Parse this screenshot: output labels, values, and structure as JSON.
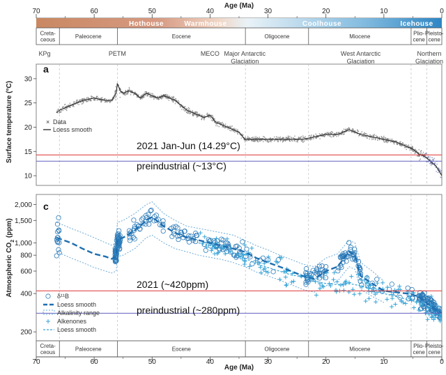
{
  "chart_data": [
    {
      "panel": "a",
      "type": "scatter",
      "ylabel": "Surface temperature (°C)",
      "xlabel": "Age (Ma)",
      "x_reversed": true,
      "xlim": [
        70,
        0
      ],
      "ylim": [
        8,
        33
      ],
      "y_ticks": [
        10,
        15,
        20,
        25,
        30
      ],
      "legend": [
        "Data",
        "Loess smooth"
      ],
      "legend_position": "left",
      "event_labels": [
        {
          "label": "KPg",
          "x": 66
        },
        {
          "label": "PETM",
          "x": 56
        },
        {
          "label": "MECO",
          "x": 40
        },
        {
          "label": "Major Antarctic Glaciation",
          "x": 34
        },
        {
          "label": "West Antarctic Glaciation",
          "x": 14
        },
        {
          "label": "Northern Glaciation",
          "x": 2.6
        }
      ],
      "reference_lines": [
        {
          "label": "2021 Jan-Jun (14.29°C)",
          "value": 14.29,
          "color": "#e03030"
        },
        {
          "label": "preindustrial (~13°C)",
          "value": 13,
          "color": "#6060c0"
        }
      ],
      "loess_smooth": {
        "x": [
          66.5,
          66,
          64,
          62,
          60,
          58,
          57,
          56.2,
          56,
          55.5,
          55,
          54,
          53,
          52,
          51,
          50,
          49,
          48,
          47,
          46,
          45,
          44,
          43,
          42,
          41,
          40,
          39,
          38,
          37,
          36,
          35,
          34,
          33,
          32,
          30,
          28,
          26,
          24,
          22,
          20,
          18,
          17,
          16,
          15,
          14,
          12,
          10,
          8,
          6,
          5,
          4,
          3,
          2,
          1,
          0.5,
          0
        ],
        "y": [
          23,
          23.5,
          24.5,
          25.5,
          26,
          25.5,
          25.5,
          27,
          29,
          27.5,
          27,
          27.5,
          27,
          26,
          27,
          26.5,
          26,
          26.5,
          26,
          25.5,
          24.5,
          23.5,
          23,
          22.5,
          22,
          22.5,
          21,
          20.5,
          20,
          19.5,
          19,
          17.5,
          17.5,
          17.5,
          17.5,
          17.5,
          17.5,
          17.5,
          18,
          18.5,
          18.5,
          19,
          19.5,
          19,
          18.5,
          18,
          17.5,
          17,
          16,
          15.5,
          14.5,
          14,
          13,
          12,
          11,
          10
        ]
      }
    },
    {
      "panel": "c",
      "type": "scatter",
      "ylabel": "Atmospheric CO2 (ppm)",
      "xlabel": "Age (Ma)",
      "x_reversed": true,
      "xlim": [
        70,
        0
      ],
      "y_scale": "log",
      "ylim": [
        170,
        2400
      ],
      "y_ticks": [
        200,
        400,
        600,
        800,
        1000,
        1500,
        2000
      ],
      "y_tick_labels": [
        "200",
        "400",
        "600",
        "800",
        "1,000",
        "1,500",
        "2,000"
      ],
      "legend": [
        "δ11B",
        "Loess smooth",
        "Alkalinity range",
        "Alkenones",
        "Loess smooth"
      ],
      "legend_position": "bottom-left",
      "reference_lines": [
        {
          "label": "2021 (~420ppm)",
          "value": 420,
          "color": "#e03030"
        },
        {
          "label": "preindustrial (~280ppm)",
          "value": 280,
          "color": "#6060c0"
        }
      ],
      "boron_loess": {
        "x": [
          66.5,
          64,
          62,
          60,
          58,
          57,
          56.2,
          56,
          55,
          53,
          51,
          50,
          48,
          46,
          44,
          42,
          40,
          38,
          36,
          34,
          32,
          30,
          28,
          26,
          24,
          22,
          20,
          18,
          16,
          15,
          14,
          12,
          10,
          8,
          6,
          4,
          2,
          1,
          0
        ],
        "y": [
          1100,
          1000,
          900,
          820,
          780,
          750,
          780,
          1050,
          1100,
          1250,
          1500,
          1600,
          1350,
          1200,
          1100,
          1050,
          1000,
          950,
          900,
          850,
          760,
          700,
          650,
          600,
          550,
          520,
          600,
          650,
          850,
          800,
          550,
          480,
          420,
          410,
          400,
          380,
          320,
          300,
          280
        ]
      },
      "alkalinity_upper": {
        "x": [
          66.5,
          64,
          62,
          60,
          58,
          57,
          56.2,
          56,
          55,
          53,
          51,
          50,
          48,
          46,
          44,
          42,
          40,
          38,
          36,
          34,
          32,
          30,
          28,
          26,
          24,
          22,
          20,
          18,
          16,
          15,
          14,
          12,
          10
        ],
        "y": [
          1450,
          1300,
          1200,
          1100,
          1000,
          960,
          1000,
          1450,
          1500,
          1700,
          2000,
          2100,
          1700,
          1500,
          1350,
          1300,
          1250,
          1200,
          1150,
          1050,
          950,
          880,
          800,
          740,
          680,
          650,
          760,
          820,
          1050,
          1000,
          700,
          600,
          500
        ]
      },
      "alkalinity_lower": {
        "x": [
          66.5,
          64,
          62,
          60,
          58,
          57,
          56.2,
          56,
          55,
          53,
          51,
          50,
          48,
          46,
          44,
          42,
          40,
          38,
          36,
          34,
          32,
          30,
          28,
          26,
          24,
          22,
          20,
          18,
          16,
          15,
          14,
          12,
          10
        ],
        "y": [
          850,
          760,
          700,
          640,
          600,
          580,
          600,
          780,
          800,
          900,
          1100,
          1150,
          1000,
          900,
          850,
          800,
          770,
          740,
          700,
          650,
          590,
          550,
          510,
          470,
          430,
          410,
          460,
          500,
          650,
          620,
          430,
          380,
          340
        ]
      },
      "alkenone_loess": {
        "x": [
          42,
          40,
          38,
          36,
          34,
          32,
          30,
          28,
          26,
          24,
          22,
          20,
          18,
          16,
          14,
          12,
          10,
          8,
          6,
          4,
          2,
          1,
          0
        ],
        "y": [
          1000,
          950,
          900,
          820,
          760,
          680,
          640,
          600,
          560,
          540,
          500,
          480,
          470,
          480,
          460,
          430,
          400,
          380,
          360,
          340,
          300,
          280,
          260
        ]
      }
    }
  ],
  "labels": {
    "age_axis_title": "Age (Ma)",
    "x_ticks": [
      "70",
      "60",
      "50",
      "40",
      "30",
      "20",
      "10",
      "0"
    ],
    "climate_states": [
      "Hothouse",
      "Warmhouse",
      "Coolhouse",
      "Icehouse"
    ],
    "epochs": [
      {
        "lines": [
          "Creta-",
          "ceous"
        ],
        "from": 70,
        "to": 66
      },
      {
        "lines": [
          "Paleocene"
        ],
        "from": 66,
        "to": 56
      },
      {
        "lines": [
          "Eocene"
        ],
        "from": 56,
        "to": 33.9
      },
      {
        "lines": [
          "Oligocene"
        ],
        "from": 33.9,
        "to": 23
      },
      {
        "lines": [
          "Miocene"
        ],
        "from": 23,
        "to": 5.3
      },
      {
        "lines": [
          "Plio-",
          "cene"
        ],
        "from": 5.3,
        "to": 2.6
      },
      {
        "lines": [
          "Pleisto-",
          "cene"
        ],
        "from": 2.6,
        "to": 0
      }
    ],
    "panel_a_letter": "a",
    "panel_c_letter": "c",
    "temp_axis_title": "Surface temperature (°C)",
    "co2_axis_title_main": "Atmospheric CO",
    "co2_axis_title_sub": "2",
    "co2_axis_title_unit": " (ppm)",
    "legend_a": [
      "Data",
      "Loess smooth"
    ],
    "legend_c": [
      "δ¹¹B",
      "Loess smooth",
      "Alkalinity range",
      "Alkenones",
      "Loess smooth"
    ],
    "ref_a_2021": "2021 Jan-Jun (14.29°C)",
    "ref_a_pre": "preindustrial (~13°C)",
    "ref_c_2021": "2021 (~420ppm)",
    "ref_c_pre": "preindustrial (~280ppm)"
  },
  "colors": {
    "hothouse": "#c98862",
    "warmhouse": "#e8c7b2",
    "coolhouse": "#a9cfe6",
    "icehouse": "#2e86c4",
    "boron": "#2a7ab8",
    "alkenone": "#36a4d8",
    "temp_points": "#888888",
    "temp_line": "#333333",
    "ref_2021": "#e03030",
    "ref_pre": "#6060c0"
  }
}
